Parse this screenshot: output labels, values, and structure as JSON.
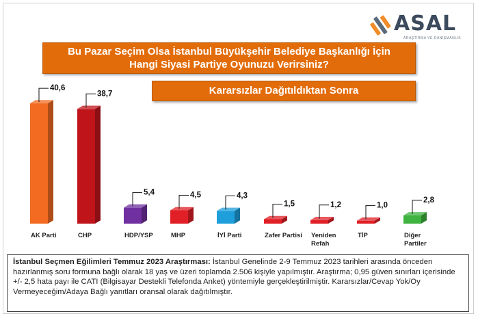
{
  "logo": {
    "name": "ASAL",
    "tagline": "ARAŞTIRMA VE DANIŞMANLIK"
  },
  "title_line1": "Bu Pazar Seçim Olsa İstanbul Büyükşehir Belediye Başkanlığı İçin",
  "title_line2": "Hangi Siyasi Partiye Oyunuzu Verirsiniz?",
  "subtitle": "Kararsızlar Dağıtıldıktan Sonra",
  "chart_data": {
    "type": "bar",
    "categories": [
      "AK Parti",
      "CHP",
      "HDP/YSP",
      "MHP",
      "İYİ Parti",
      "Zafer Partisi",
      "Yeniden Refah",
      "TİP",
      "Diğer Partiler"
    ],
    "category_lines": [
      [
        "AK Parti"
      ],
      [
        "CHP"
      ],
      [
        "HDP/YSP"
      ],
      [
        "MHP"
      ],
      [
        "İYİ Parti"
      ],
      [
        "Zafer Partisi"
      ],
      [
        "Yeniden",
        "Refah"
      ],
      [
        "TİP"
      ],
      [
        "Diğer",
        "Partiler"
      ]
    ],
    "values": [
      40.6,
      38.7,
      5.4,
      4.5,
      4.3,
      1.5,
      1.2,
      1.0,
      2.8
    ],
    "value_labels": [
      "40,6",
      "38,7",
      "5,4",
      "4,5",
      "4,3",
      "1,5",
      "1,2",
      "1,0",
      "2,8"
    ],
    "colors": [
      "#f26b21",
      "#c0141b",
      "#7030a0",
      "#e01f26",
      "#1e9fdc",
      "#e01f26",
      "#e01f26",
      "#e01f26",
      "#3fb33f"
    ],
    "ylim": [
      0,
      45
    ],
    "grid": false,
    "legend": "none"
  },
  "footnote": {
    "heading": "İstanbul Seçmen Eğilimleri Temmuz 2023 Araştırması:",
    "text": " İstanbul Genelinde 2-9 Temmuz 2023 tarihleri arasında önceden hazırlanmış soru formuna bağlı olarak 18 yaş ve üzeri toplamda 2.506 kişiyle yapılmıştır. Araştırma; 0,95 güven sınırları içerisinde +/- 2,5 hata payı ile CATI (Bilgisayar Destekli Telefonda Anket) yöntemiyle gerçekleştirilmiştir. Kararsızlar/Cevap Yok/Oy Vermeyeceğim/Adaya Bağlı yanıtları oransal olarak dağıtılmıştır."
  }
}
